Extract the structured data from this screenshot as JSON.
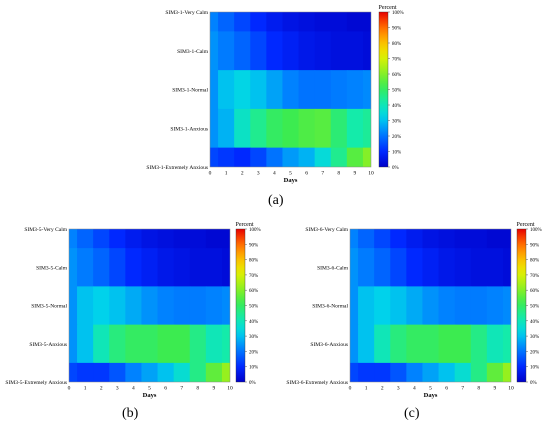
{
  "panel_labels": [
    "(a)",
    "(b)",
    "(c)"
  ],
  "colorbar_ticks": [
    "0%",
    "10%",
    "20%",
    "30%",
    "40%",
    "50%",
    "60%",
    "70%",
    "80%",
    "90%",
    "100%"
  ],
  "chart_data": [
    {
      "type": "heatmap",
      "title": "",
      "xlabel": "Days",
      "ylabel": "",
      "colorbar_label": "Percent",
      "x": [
        0,
        1,
        2,
        3,
        4,
        5,
        6,
        7,
        8,
        9,
        10
      ],
      "categories": [
        "SIM3-1-Very Calm",
        "SIM3-1-Calm",
        "SIM3-1-Normal",
        "SIM3-1-Anxious",
        "SIM3-1-Extremely Anxious"
      ],
      "values": [
        [
          22,
          18,
          14,
          10,
          7,
          5,
          4,
          3,
          3,
          2,
          2
        ],
        [
          24,
          21,
          18,
          14,
          10,
          8,
          6,
          5,
          4,
          4,
          3
        ],
        [
          24,
          30,
          33,
          30,
          26,
          22,
          20,
          20,
          21,
          22,
          23
        ],
        [
          24,
          28,
          38,
          45,
          50,
          52,
          54,
          55,
          48,
          42,
          44
        ],
        [
          14,
          12,
          10,
          14,
          20,
          25,
          28,
          35,
          45,
          55,
          60
        ]
      ],
      "zlim": [
        0,
        100
      ]
    },
    {
      "type": "heatmap",
      "title": "",
      "xlabel": "Days",
      "ylabel": "",
      "colorbar_label": "Percent",
      "x": [
        0,
        1,
        2,
        3,
        4,
        5,
        6,
        7,
        8,
        9,
        10
      ],
      "categories": [
        "SIM3-5-Very Calm",
        "SIM3-5-Calm",
        "SIM3-5-Normal",
        "SIM3-5-Anxious",
        "SIM3-5-Extremely Anxious"
      ],
      "values": [
        [
          22,
          18,
          14,
          10,
          7,
          5,
          4,
          3,
          3,
          2,
          2
        ],
        [
          24,
          21,
          18,
          14,
          10,
          8,
          6,
          5,
          4,
          4,
          3
        ],
        [
          24,
          30,
          32,
          30,
          27,
          24,
          22,
          21,
          21,
          22,
          23
        ],
        [
          24,
          30,
          40,
          47,
          50,
          50,
          52,
          52,
          46,
          40,
          42
        ],
        [
          14,
          12,
          12,
          16,
          22,
          26,
          30,
          36,
          46,
          56,
          62
        ]
      ],
      "zlim": [
        0,
        100
      ]
    },
    {
      "type": "heatmap",
      "title": "",
      "xlabel": "Days",
      "ylabel": "",
      "colorbar_label": "Percent",
      "x": [
        0,
        1,
        2,
        3,
        4,
        5,
        6,
        7,
        8,
        9,
        10
      ],
      "categories": [
        "SIM3-6-Very Calm",
        "SIM3-6-Calm",
        "SIM3-6-Normal",
        "SIM3-6-Anxious",
        "SIM3-6-Extremely Anxious"
      ],
      "values": [
        [
          22,
          18,
          14,
          10,
          7,
          5,
          4,
          3,
          3,
          2,
          2
        ],
        [
          24,
          21,
          18,
          14,
          10,
          8,
          6,
          5,
          4,
          4,
          3
        ],
        [
          24,
          30,
          32,
          30,
          27,
          24,
          22,
          21,
          21,
          22,
          23
        ],
        [
          24,
          30,
          40,
          47,
          50,
          50,
          52,
          52,
          46,
          40,
          42
        ],
        [
          14,
          12,
          12,
          16,
          22,
          26,
          30,
          36,
          46,
          56,
          62
        ]
      ],
      "zlim": [
        0,
        100
      ]
    }
  ]
}
